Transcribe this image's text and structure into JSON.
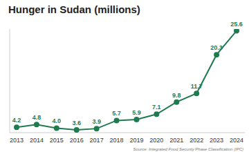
{
  "chart_data": {
    "type": "line",
    "title": "Hunger in Sudan (millions)",
    "source": "Source: Integrated Food Security Phase Classification (IPC)",
    "categories": [
      "2013",
      "2014",
      "2015",
      "2016",
      "2017",
      "2018",
      "2019",
      "2020",
      "2021",
      "2022",
      "2023",
      "2024"
    ],
    "values": [
      4.2,
      4.8,
      4.0,
      3.6,
      3.9,
      5.7,
      5.9,
      7.1,
      9.8,
      11.7,
      20.3,
      25.6
    ],
    "value_labels": [
      "4.2",
      "4.8",
      "4.0",
      "3.6",
      "3.9",
      "5.7",
      "5.9",
      "7.1",
      "9.8",
      "11.7",
      "20.3",
      "25.6"
    ],
    "color": "#1f7a4f",
    "ylim": [
      3,
      26
    ],
    "yticks": [],
    "grid": false,
    "data_labels": true,
    "tick_labels": "x",
    "marker": "circle"
  }
}
